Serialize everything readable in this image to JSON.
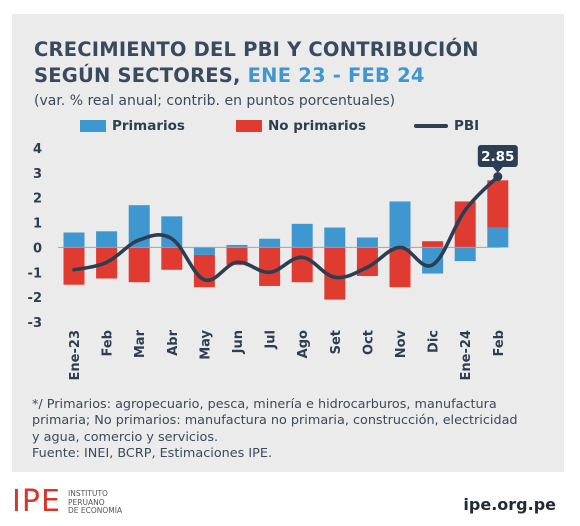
{
  "header": {
    "title_line1": "CRECIMIENTO DEL PBI Y CONTRIBUCIÓN",
    "title_line2": "SEGÚN SECTORES,",
    "title_accent": "ENE 23 - FEB 24",
    "subtitle": "(var. % real anual; contrib. en puntos porcentuales)"
  },
  "legend": {
    "primarios": "Primarios",
    "no_primarios": "No primarios",
    "pbi": "PBI"
  },
  "colors": {
    "primarios": "#3f97d0",
    "no_primarios": "#e03b30",
    "pbi": "#2d3d52",
    "accent": "#3f97d0"
  },
  "chart_data": {
    "type": "bar",
    "stacked": true,
    "categories": [
      "Ene-23",
      "Feb",
      "Mar",
      "Abr",
      "May",
      "Jun",
      "Jul",
      "Ago",
      "Set",
      "Oct",
      "Nov",
      "Dic",
      "Ene-24",
      "Feb"
    ],
    "series": [
      {
        "name": "Primarios",
        "type": "bar",
        "values": [
          0.6,
          0.65,
          1.7,
          1.25,
          -0.3,
          0.1,
          0.35,
          0.95,
          0.8,
          0.4,
          1.85,
          -1.05,
          -0.55,
          0.8
        ]
      },
      {
        "name": "No primarios",
        "type": "bar",
        "values": [
          -1.5,
          -1.25,
          -1.4,
          -0.9,
          -1.3,
          -0.7,
          -1.55,
          -1.4,
          -2.1,
          -1.15,
          -1.6,
          0.25,
          1.85,
          1.9
        ]
      },
      {
        "name": "PBI",
        "type": "line",
        "values": [
          -0.9,
          -0.6,
          0.3,
          0.35,
          -1.3,
          -0.6,
          -1.0,
          -0.4,
          -1.2,
          -0.8,
          0.0,
          -0.7,
          1.5,
          2.85
        ]
      }
    ],
    "annotation": {
      "index": 13,
      "label": "2.85"
    },
    "y_ticks": [
      "4",
      "3",
      "2",
      "1",
      "0",
      "-1",
      "-2",
      "-3"
    ],
    "ylim": [
      -3,
      4
    ],
    "grid": false,
    "legend_position": "top"
  },
  "footnote": {
    "line1": "*/ Primarios: agropecuario, pesca, minería e hidrocarburos, manufactura",
    "line2": "primaria; No primarios: manufactura no primaria, construcción, electricidad",
    "line3": "y agua, comercio y servicios.",
    "line4": "Fuente: INEI, BCRP, Estimaciones IPE."
  },
  "logo": {
    "mark": "IPE",
    "line1": "INSTITUTO",
    "line2": "PERUANO",
    "line3": "DE ECONOMÍA"
  },
  "site": "ipe.org.pe"
}
